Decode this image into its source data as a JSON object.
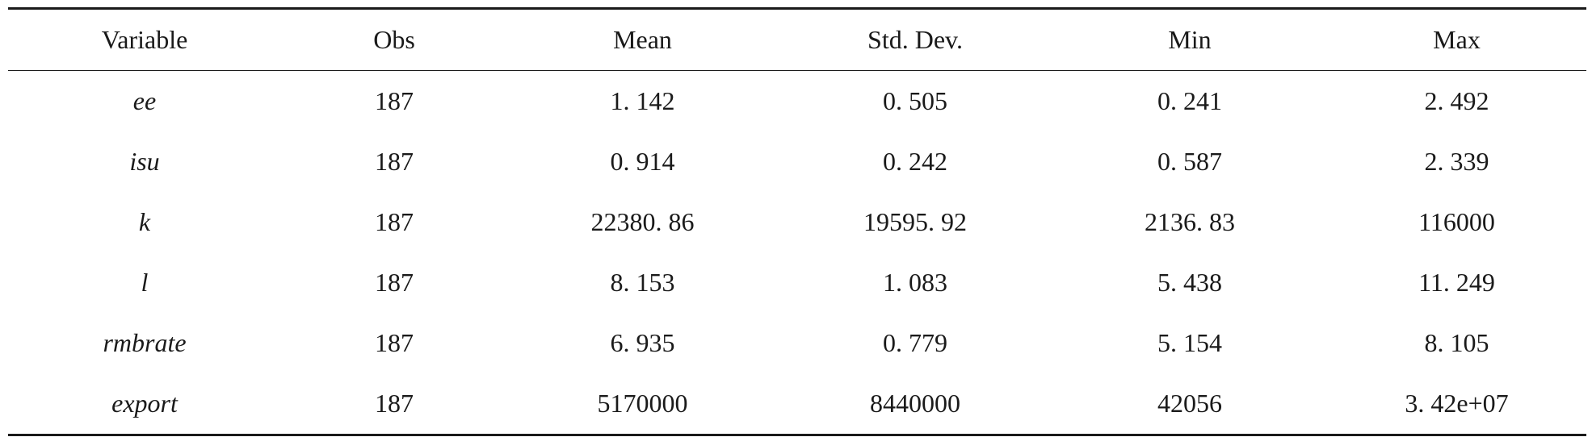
{
  "table": {
    "headers": [
      "Variable",
      "Obs",
      "Mean",
      "Std. Dev.",
      "Min",
      "Max"
    ],
    "rows": [
      {
        "variable": "ee",
        "obs": "187",
        "mean": "1. 142",
        "std": "0. 505",
        "min": "0. 241",
        "max": "2. 492"
      },
      {
        "variable": "isu",
        "obs": "187",
        "mean": "0. 914",
        "std": "0. 242",
        "min": "0. 587",
        "max": "2. 339"
      },
      {
        "variable": "k",
        "obs": "187",
        "mean": "22380. 86",
        "std": "19595. 92",
        "min": "2136. 83",
        "max": "116000"
      },
      {
        "variable": "l",
        "obs": "187",
        "mean": "8. 153",
        "std": "1. 083",
        "min": "5. 438",
        "max": "11. 249"
      },
      {
        "variable": "rmbrate",
        "obs": "187",
        "mean": "6. 935",
        "std": "0. 779",
        "min": "5. 154",
        "max": "8. 105"
      },
      {
        "variable": "export",
        "obs": "187",
        "mean": "5170000",
        "std": "8440000",
        "min": "42056",
        "max": "3. 42e+07"
      }
    ]
  }
}
